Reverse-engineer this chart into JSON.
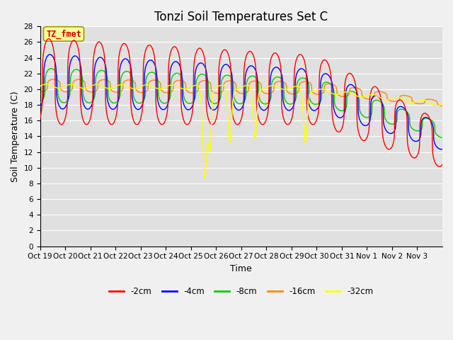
{
  "title": "Tonzi Soil Temperatures Set C",
  "xlabel": "Time",
  "ylabel": "Soil Temperature (C)",
  "annotation": "TZ_fmet",
  "xlabels": [
    "Oct 19",
    "Oct 20",
    "Oct 21",
    "Oct 22",
    "Oct 23",
    "Oct 24",
    "Oct 25",
    "Oct 26",
    "Oct 27",
    "Oct 28",
    "Oct 29",
    "Oct 30",
    "Oct 31",
    "Nov 1",
    "Nov 2",
    "Nov 3"
  ],
  "ylim": [
    0,
    28
  ],
  "yticks": [
    0,
    2,
    4,
    6,
    8,
    10,
    12,
    14,
    16,
    18,
    20,
    22,
    24,
    26,
    28
  ],
  "line_colors": [
    "#ff0000",
    "#0000ff",
    "#00cc00",
    "#ff8800",
    "#ffff00"
  ],
  "line_labels": [
    "-2cm",
    "-4cm",
    "-8cm",
    "-16cm",
    "-32cm"
  ],
  "bg_color": "#e0e0e0",
  "fig_color": "#f0f0f0",
  "annotation_bg": "#ffff99",
  "annotation_text_color": "#cc0000",
  "title_fontsize": 12,
  "axis_fontsize": 9,
  "tick_fontsize": 7.5
}
